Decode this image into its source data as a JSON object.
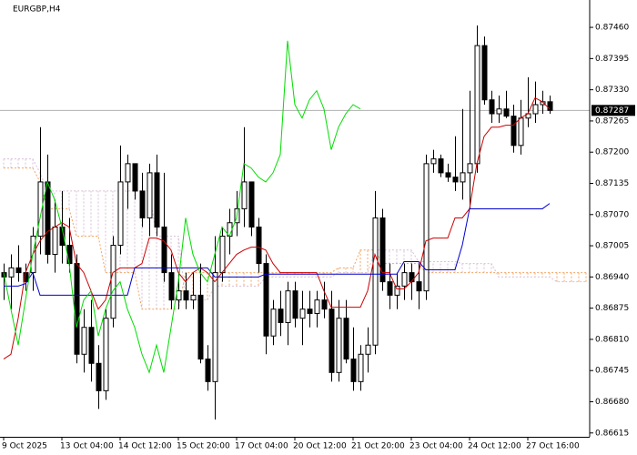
{
  "chart_data": {
    "type": "candlestick",
    "title": "EURGBP,H4",
    "categories": [
      "9 Oct 2025",
      null,
      null,
      null,
      null,
      null,
      null,
      null,
      "13 Oct 04:00",
      null,
      null,
      null,
      null,
      null,
      null,
      null,
      "14 Oct 12:00",
      null,
      null,
      null,
      null,
      null,
      null,
      null,
      "15 Oct 20:00",
      null,
      null,
      null,
      null,
      null,
      null,
      null,
      "17 Oct 04:00",
      null,
      null,
      null,
      null,
      null,
      null,
      null,
      "20 Oct 12:00",
      null,
      null,
      null,
      null,
      null,
      null,
      null,
      "21 Oct 20:00",
      null,
      null,
      null,
      null,
      null,
      null,
      null,
      "23 Oct 04:00",
      null,
      null,
      null,
      null,
      null,
      null,
      null,
      "24 Oct 12:00",
      null,
      null,
      null,
      null,
      null,
      null,
      null,
      "27 Oct 16:00",
      null,
      null,
      null,
      null,
      null,
      null,
      null,
      null
    ],
    "open": [
      0.86949,
      0.8694,
      0.86959,
      0.86949,
      0.86949,
      0.87025,
      0.87138,
      0.86987,
      0.87044,
      0.87006,
      0.86968,
      0.86779,
      0.86835,
      0.8676,
      0.86703,
      0.86854,
      0.87006,
      0.87138,
      0.87176,
      0.87119,
      0.87063,
      0.87157,
      0.87044,
      0.86949,
      0.86892,
      0.86911,
      0.86892,
      0.86902,
      0.86769,
      0.86722,
      0.86949,
      0.87025,
      0.87053,
      0.87082,
      0.87138,
      0.87044,
      0.86968,
      0.86817,
      0.86873,
      0.86845,
      0.86911,
      0.86854,
      0.86873,
      0.86864,
      0.86892,
      0.86873,
      0.86741,
      0.86854,
      0.86769,
      0.86722,
      0.86779,
      0.86798,
      0.87063,
      0.8693,
      0.86902,
      0.86921,
      0.86949,
      0.8693,
      0.86911,
      0.87176,
      0.87186,
      0.87157,
      0.87148,
      0.87138,
      0.87157,
      0.87176,
      0.87422,
      0.87309,
      0.8728,
      0.8729,
      0.87275,
      0.87214,
      0.87271,
      0.8728,
      0.87299,
      0.87305,
      null,
      null,
      null,
      null,
      null
    ],
    "high": [
      0.86968,
      0.86987,
      0.87006,
      0.86968,
      0.87044,
      0.87252,
      0.87195,
      0.87101,
      0.87119,
      0.87063,
      0.86987,
      0.86873,
      0.86892,
      0.86798,
      0.86873,
      0.87025,
      0.87214,
      0.87195,
      0.87176,
      0.87157,
      0.87176,
      0.87195,
      0.87157,
      0.86987,
      0.86949,
      0.86949,
      0.86949,
      0.86968,
      0.86798,
      0.87025,
      0.87044,
      0.87082,
      0.87119,
      0.87252,
      0.87138,
      0.87063,
      0.86987,
      0.86892,
      0.86911,
      0.8693,
      0.8693,
      0.86911,
      0.86911,
      0.86911,
      0.8693,
      0.86911,
      0.86892,
      0.86892,
      0.86835,
      0.86798,
      0.86835,
      0.87119,
      0.87082,
      0.86968,
      0.86949,
      0.86968,
      0.86968,
      0.86968,
      0.87195,
      0.87205,
      0.87195,
      0.87176,
      0.87233,
      0.8729,
      0.87328,
      0.87464,
      0.87441,
      0.87328,
      0.87318,
      0.87328,
      0.87299,
      0.87309,
      0.87356,
      0.87347,
      0.87328,
      0.87318,
      null,
      null,
      null,
      null,
      null
    ],
    "low": [
      0.86892,
      0.86873,
      0.8693,
      0.86911,
      0.86911,
      0.86987,
      0.86968,
      0.86949,
      0.86968,
      0.86949,
      0.8676,
      0.86741,
      0.86722,
      0.86665,
      0.86684,
      0.86835,
      0.86987,
      0.87082,
      0.87101,
      0.87044,
      0.87025,
      0.87025,
      0.8693,
      0.86873,
      0.86873,
      0.86873,
      0.86873,
      0.8676,
      0.86703,
      0.86643,
      0.8693,
      0.86987,
      0.87025,
      0.87044,
      0.87025,
      0.86949,
      0.86779,
      0.86798,
      0.86817,
      0.86798,
      0.86835,
      0.86798,
      0.86835,
      0.86835,
      0.86854,
      0.86722,
      0.86722,
      0.8676,
      0.86703,
      0.86703,
      0.86741,
      0.86779,
      0.86911,
      0.86873,
      0.86873,
      0.86892,
      0.86892,
      0.86873,
      0.86892,
      0.87157,
      0.87148,
      0.87138,
      0.87119,
      0.87101,
      0.87082,
      0.87157,
      0.87299,
      0.87261,
      0.87261,
      0.87271,
      0.87199,
      0.87195,
      0.87252,
      0.87261,
      0.8728,
      0.8728,
      null,
      null,
      null,
      null,
      null
    ],
    "close": [
      0.8694,
      0.86959,
      0.86949,
      0.8693,
      0.87025,
      0.87138,
      0.86987,
      0.87044,
      0.87006,
      0.86968,
      0.86779,
      0.86835,
      0.8676,
      0.86703,
      0.86854,
      0.87006,
      0.87138,
      0.87176,
      0.87119,
      0.87063,
      0.87157,
      0.87044,
      0.86949,
      0.86892,
      0.86911,
      0.86892,
      0.86902,
      0.86769,
      0.86722,
      0.86949,
      0.87025,
      0.87053,
      0.87082,
      0.87138,
      0.87044,
      0.86968,
      0.86817,
      0.86873,
      0.86845,
      0.86911,
      0.86854,
      0.86873,
      0.86864,
      0.86892,
      0.86873,
      0.86741,
      0.86854,
      0.86769,
      0.86722,
      0.86779,
      0.86798,
      0.87063,
      0.8693,
      0.86902,
      0.86921,
      0.86949,
      0.8693,
      0.86911,
      0.87176,
      0.87186,
      0.87157,
      0.87148,
      0.87138,
      0.87157,
      0.87176,
      0.87422,
      0.87309,
      0.8728,
      0.8729,
      0.87275,
      0.87214,
      0.87271,
      0.8728,
      0.87299,
      0.87305,
      0.87287,
      null,
      null,
      null,
      null,
      null
    ],
    "lines": [
      {
        "color": "#cc0000",
        "values": [
          0.86769,
          0.86779,
          0.86854,
          0.86949,
          0.86987,
          0.87015,
          0.87034,
          0.87044,
          0.87053,
          0.87044,
          0.86968,
          0.86949,
          0.86911,
          0.86873,
          0.86892,
          0.86949,
          0.86959,
          0.86959,
          0.86959,
          0.86968,
          0.87021,
          0.87021,
          0.87015,
          0.86996,
          0.86949,
          0.8693,
          0.86949,
          0.86959,
          0.86949,
          0.8693,
          0.86949,
          0.86968,
          0.86987,
          0.86996,
          0.87002,
          0.87002,
          0.86996,
          0.86968,
          0.86949,
          0.86949,
          0.86949,
          0.86949,
          0.86949,
          0.86949,
          0.86911,
          0.86877,
          0.86877,
          0.86877,
          0.86877,
          0.86877,
          0.86911,
          0.86987,
          0.86949,
          0.86949,
          0.86915,
          0.86915,
          0.8693,
          0.86949,
          0.87015,
          0.87021,
          0.87021,
          0.87021,
          0.87063,
          0.87063,
          0.87082,
          0.87176,
          0.87233,
          0.87252,
          0.87252,
          0.87256,
          0.87256,
          0.87271,
          0.8728,
          0.87313,
          0.87305,
          0.8729,
          null,
          null,
          null,
          null,
          null
        ]
      },
      {
        "color": "#0000cc",
        "values": [
          0.86921,
          0.86921,
          0.86921,
          0.86926,
          0.86949,
          0.86902,
          0.86902,
          0.86902,
          0.86902,
          0.86902,
          0.86902,
          0.86902,
          0.86902,
          0.86902,
          0.86902,
          0.86902,
          0.86902,
          0.86902,
          0.86959,
          0.86959,
          0.86959,
          0.86959,
          0.86959,
          0.86959,
          0.86959,
          0.86959,
          0.86959,
          0.86959,
          0.86959,
          0.8694,
          0.8694,
          0.8694,
          0.8694,
          0.8694,
          0.8694,
          0.8694,
          0.86946,
          0.86946,
          0.86946,
          0.86946,
          0.86946,
          0.86946,
          0.86946,
          0.86946,
          0.86946,
          0.86946,
          0.86946,
          0.86946,
          0.86946,
          0.86946,
          0.86946,
          0.86946,
          0.86946,
          0.86946,
          0.86946,
          0.86972,
          0.86972,
          0.86972,
          0.86955,
          0.86955,
          0.86955,
          0.86955,
          0.86955,
          0.87006,
          0.87082,
          0.87082,
          0.87082,
          0.87082,
          0.87082,
          0.87082,
          0.87082,
          0.87082,
          0.87082,
          0.87082,
          0.87082,
          0.87093,
          null,
          null,
          null,
          null,
          null
        ]
      },
      {
        "color": "#00dd00",
        "values": [
          0.86949,
          0.86873,
          0.86798,
          0.86892,
          0.86987,
          0.87063,
          0.87138,
          0.87101,
          0.87044,
          0.86968,
          0.86835,
          0.86892,
          0.86911,
          0.86817,
          0.86873,
          0.86911,
          0.8693,
          0.86873,
          0.86835,
          0.86779,
          0.86741,
          0.86798,
          0.86741,
          0.86835,
          0.8693,
          0.87063,
          0.86987,
          0.86949,
          0.8693,
          0.86987,
          0.87044,
          0.87025,
          0.87063,
          0.87176,
          0.87167,
          0.87148,
          0.87138,
          0.87157,
          0.87195,
          0.87432,
          0.87299,
          0.87271,
          0.87309,
          0.87328,
          0.8729,
          0.87205,
          0.87252,
          0.8728,
          0.87299,
          0.8729,
          null,
          null,
          null,
          null,
          null,
          null,
          null,
          null,
          null,
          null,
          null,
          null,
          null,
          null,
          null,
          null,
          null,
          null,
          null,
          null,
          null,
          null,
          null,
          null,
          null,
          null,
          null,
          null,
          null,
          null,
          null
        ]
      }
    ],
    "cloud": {
      "span_a": {
        "color": "#f4a460",
        "values": [
          0.87167,
          0.87167,
          0.87167,
          0.87167,
          0.87167,
          0.87138,
          0.87082,
          0.87082,
          0.87082,
          0.87082,
          0.87025,
          0.87025,
          0.87025,
          0.87025,
          0.86949,
          0.86949,
          0.86949,
          0.86949,
          0.86949,
          0.86873,
          0.86873,
          0.86873,
          0.86873,
          0.86873,
          0.86873,
          0.86949,
          0.86949,
          0.86949,
          0.86949,
          0.86949,
          0.86949,
          0.86949,
          0.86949,
          0.86949,
          0.86949,
          0.86949,
          0.86949,
          0.86949,
          0.86949,
          0.86949,
          0.86949,
          0.86949,
          0.86949,
          0.86949,
          0.86949,
          0.86949,
          0.86959,
          0.86959,
          0.86959,
          0.86996,
          0.86996,
          0.86996,
          0.86968,
          0.86968,
          0.86968,
          0.86968,
          0.86968,
          0.86968,
          0.86949,
          0.86949,
          0.86949,
          0.86949,
          0.86949,
          0.86949,
          0.86949,
          0.86949,
          0.86949,
          0.86949,
          0.86949,
          0.86949,
          0.86949,
          0.86949,
          0.86949,
          0.86949,
          0.86949,
          0.86949,
          0.86949,
          0.86949,
          0.86949,
          0.86949,
          0.86949
        ]
      },
      "span_b": {
        "color": "#d8bfd8",
        "values": [
          0.87186,
          0.87186,
          0.87186,
          0.87186,
          0.87186,
          0.87157,
          0.87119,
          0.87119,
          0.87119,
          0.87119,
          0.87119,
          0.87119,
          0.87119,
          0.87119,
          0.87119,
          0.87119,
          0.87119,
          0.87119,
          0.87119,
          0.87119,
          0.87119,
          0.87025,
          0.87025,
          0.87025,
          0.87025,
          0.86892,
          0.86892,
          0.86892,
          0.86892,
          0.86921,
          0.86921,
          0.86921,
          0.86921,
          0.86921,
          0.86921,
          0.86921,
          0.8694,
          0.8694,
          0.8694,
          0.8694,
          0.8694,
          0.8694,
          0.8694,
          0.8694,
          0.8694,
          0.8694,
          0.86949,
          0.86949,
          0.86949,
          0.86949,
          0.86949,
          0.86996,
          0.86996,
          0.86996,
          0.86996,
          0.86996,
          0.86996,
          0.86972,
          0.86972,
          0.86972,
          0.86972,
          0.86972,
          0.86972,
          0.86968,
          0.86968,
          0.86968,
          0.86968,
          0.86968,
          0.8694,
          0.8694,
          0.8694,
          0.8694,
          0.8694,
          0.8694,
          0.8694,
          0.8694,
          0.8693,
          0.8693,
          0.8693,
          0.8693,
          0.8693
        ]
      }
    },
    "current_price": 0.87287,
    "ylim": [
      0.86607,
      0.87517
    ],
    "yticks": [
      {
        "value": 0.8746,
        "label": "0.87460"
      },
      0.87395,
      {
        "value": 0.8733,
        "label": "0.87330"
      },
      0.87265,
      {
        "value": 0.872,
        "label": "0.87200"
      },
      0.87135,
      {
        "value": 0.8707,
        "label": "0.87070"
      },
      0.87005,
      {
        "value": 0.8694,
        "label": "0.86940"
      },
      0.86875,
      {
        "value": 0.8681,
        "label": "0.86810"
      },
      0.86745,
      {
        "value": 0.8668,
        "label": "0.86680"
      },
      0.86615
    ],
    "grid": false
  }
}
